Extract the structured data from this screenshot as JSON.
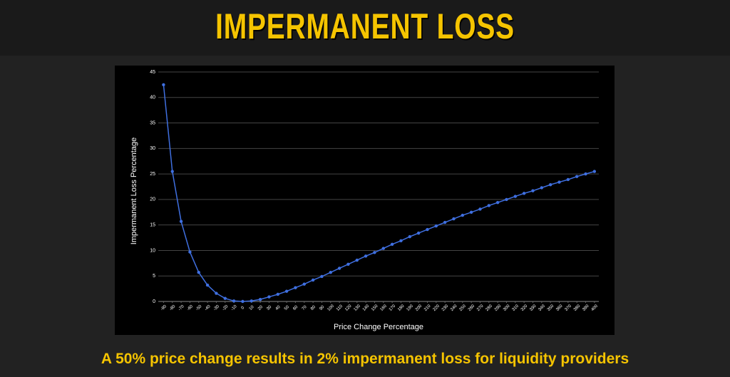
{
  "header": {
    "title": "IMPERMANENT LOSS"
  },
  "caption": "A 50% price change results in 2% impermanent loss for liquidity providers",
  "chart_data": {
    "type": "line",
    "x_label": "Price Change Percentage",
    "y_label": "Impermanent Loss Percentage",
    "color": "#3f6fe0",
    "grid": true,
    "x": [
      -90,
      -80,
      -70,
      -60,
      -50,
      -40,
      -30,
      -20,
      -10,
      0,
      10,
      20,
      30,
      40,
      50,
      60,
      70,
      80,
      90,
      100,
      110,
      120,
      130,
      140,
      150,
      160,
      170,
      180,
      190,
      200,
      210,
      220,
      230,
      240,
      250,
      260,
      270,
      280,
      290,
      300,
      310,
      320,
      330,
      340,
      350,
      360,
      370,
      380,
      390,
      400
    ],
    "values": [
      42.5,
      25.5,
      15.7,
      9.7,
      5.7,
      3.2,
      1.6,
      0.6,
      0.1,
      0,
      0.1,
      0.4,
      0.9,
      1.4,
      2.0,
      2.7,
      3.4,
      4.2,
      4.9,
      5.7,
      6.5,
      7.3,
      8.1,
      8.9,
      9.6,
      10.4,
      11.2,
      11.9,
      12.7,
      13.4,
      14.1,
      14.8,
      15.5,
      16.2,
      16.9,
      17.5,
      18.1,
      18.8,
      19.4,
      20.0,
      20.6,
      21.2,
      21.7,
      22.3,
      22.9,
      23.4,
      23.9,
      24.5,
      25.0,
      25.5
    ],
    "xlim": [
      -96,
      405
    ],
    "xticks": [
      -90,
      -80,
      -70,
      -60,
      -50,
      -40,
      -30,
      -20,
      -10,
      0,
      10,
      20,
      30,
      40,
      50,
      60,
      70,
      80,
      90,
      100,
      110,
      120,
      130,
      140,
      150,
      160,
      170,
      180,
      190,
      200,
      210,
      220,
      230,
      240,
      250,
      260,
      270,
      280,
      290,
      300,
      310,
      320,
      330,
      340,
      350,
      360,
      370,
      380,
      390,
      400
    ],
    "ylim": [
      0,
      45
    ],
    "yticks": [
      0,
      5,
      10,
      15,
      20,
      25,
      30,
      35,
      40,
      45
    ]
  }
}
